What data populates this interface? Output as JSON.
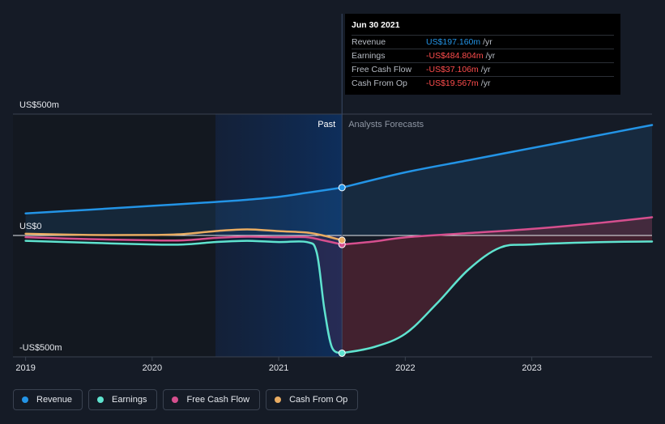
{
  "chart_data": {
    "type": "line",
    "x_domain": [
      2018.9,
      2023.95
    ],
    "y_domain": [
      -500,
      500
    ],
    "y_ticks": [
      {
        "value": 500,
        "label": "US$500m"
      },
      {
        "value": 0,
        "label": "US$0"
      },
      {
        "value": -500,
        "label": "-US$500m"
      }
    ],
    "x_ticks": [
      {
        "value": 2019,
        "label": "2019"
      },
      {
        "value": 2020,
        "label": "2020"
      },
      {
        "value": 2021,
        "label": "2021"
      },
      {
        "value": 2022,
        "label": "2022"
      },
      {
        "value": 2023,
        "label": "2023"
      }
    ],
    "divider_x": 2021.5,
    "highlight_start_x": 2020.5,
    "past_label": "Past",
    "forecast_label": "Analysts Forecasts",
    "grid": false,
    "legend_position": "bottom",
    "series": [
      {
        "name": "Revenue",
        "color": "#2394e6",
        "past": [
          [
            2019.0,
            91
          ],
          [
            2019.5,
            106
          ],
          [
            2020.0,
            122
          ],
          [
            2020.5,
            138
          ],
          [
            2020.75,
            147
          ],
          [
            2021.0,
            159
          ],
          [
            2021.25,
            178
          ],
          [
            2021.5,
            197.16
          ]
        ],
        "forecast": [
          [
            2021.5,
            197.16
          ],
          [
            2022.0,
            260
          ],
          [
            2022.5,
            310
          ],
          [
            2023.0,
            360
          ],
          [
            2023.5,
            410
          ],
          [
            2023.95,
            455
          ]
        ]
      },
      {
        "name": "Earnings",
        "color": "#5fe3cf",
        "past": [
          [
            2019.0,
            -22
          ],
          [
            2019.5,
            -30
          ],
          [
            2020.0,
            -37
          ],
          [
            2020.25,
            -37
          ],
          [
            2020.5,
            -27
          ],
          [
            2020.75,
            -22
          ],
          [
            2021.0,
            -27
          ],
          [
            2021.22,
            -27
          ],
          [
            2021.3,
            -70
          ],
          [
            2021.36,
            -300
          ],
          [
            2021.42,
            -460
          ],
          [
            2021.5,
            -484.804
          ]
        ],
        "forecast": [
          [
            2021.5,
            -484.804
          ],
          [
            2021.75,
            -460
          ],
          [
            2022.0,
            -405
          ],
          [
            2022.25,
            -280
          ],
          [
            2022.5,
            -140
          ],
          [
            2022.75,
            -50
          ],
          [
            2023.0,
            -37
          ],
          [
            2023.5,
            -28
          ],
          [
            2023.95,
            -25
          ]
        ]
      },
      {
        "name": "Free Cash Flow",
        "color": "#d64f8e",
        "past": [
          [
            2019.0,
            -7
          ],
          [
            2019.5,
            -15
          ],
          [
            2020.0,
            -20
          ],
          [
            2020.25,
            -20
          ],
          [
            2020.5,
            -10
          ],
          [
            2020.75,
            -5
          ],
          [
            2021.0,
            -7
          ],
          [
            2021.22,
            -7
          ],
          [
            2021.35,
            -20
          ],
          [
            2021.5,
            -37.106
          ]
        ],
        "forecast": [
          [
            2021.5,
            -37.106
          ],
          [
            2021.75,
            -25
          ],
          [
            2022.0,
            -8
          ],
          [
            2022.5,
            10
          ],
          [
            2023.0,
            27
          ],
          [
            2023.5,
            50
          ],
          [
            2023.95,
            75
          ]
        ]
      },
      {
        "name": "Cash From Op",
        "color": "#e9ac62",
        "past": [
          [
            2019.0,
            7
          ],
          [
            2019.5,
            2
          ],
          [
            2020.0,
            2
          ],
          [
            2020.25,
            6
          ],
          [
            2020.5,
            18
          ],
          [
            2020.75,
            25
          ],
          [
            2021.0,
            18
          ],
          [
            2021.22,
            12
          ],
          [
            2021.35,
            0
          ],
          [
            2021.5,
            -19.567
          ]
        ],
        "forecast": []
      }
    ],
    "tooltip": {
      "date": "Jun 30 2021",
      "rows": [
        {
          "name": "Revenue",
          "value": "US$197.160m",
          "unit": "/yr",
          "color": "#2394e6"
        },
        {
          "name": "Earnings",
          "value": "-US$484.804m",
          "unit": "/yr",
          "color": "#ff4d4d"
        },
        {
          "name": "Free Cash Flow",
          "value": "-US$37.106m",
          "unit": "/yr",
          "color": "#ff4d4d"
        },
        {
          "name": "Cash From Op",
          "value": "-US$19.567m",
          "unit": "/yr",
          "color": "#ff4d4d"
        }
      ]
    }
  },
  "legend": [
    {
      "label": "Revenue",
      "color": "#2394e6"
    },
    {
      "label": "Earnings",
      "color": "#5fe3cf"
    },
    {
      "label": "Free Cash Flow",
      "color": "#d64f8e"
    },
    {
      "label": "Cash From Op",
      "color": "#e9ac62"
    }
  ]
}
